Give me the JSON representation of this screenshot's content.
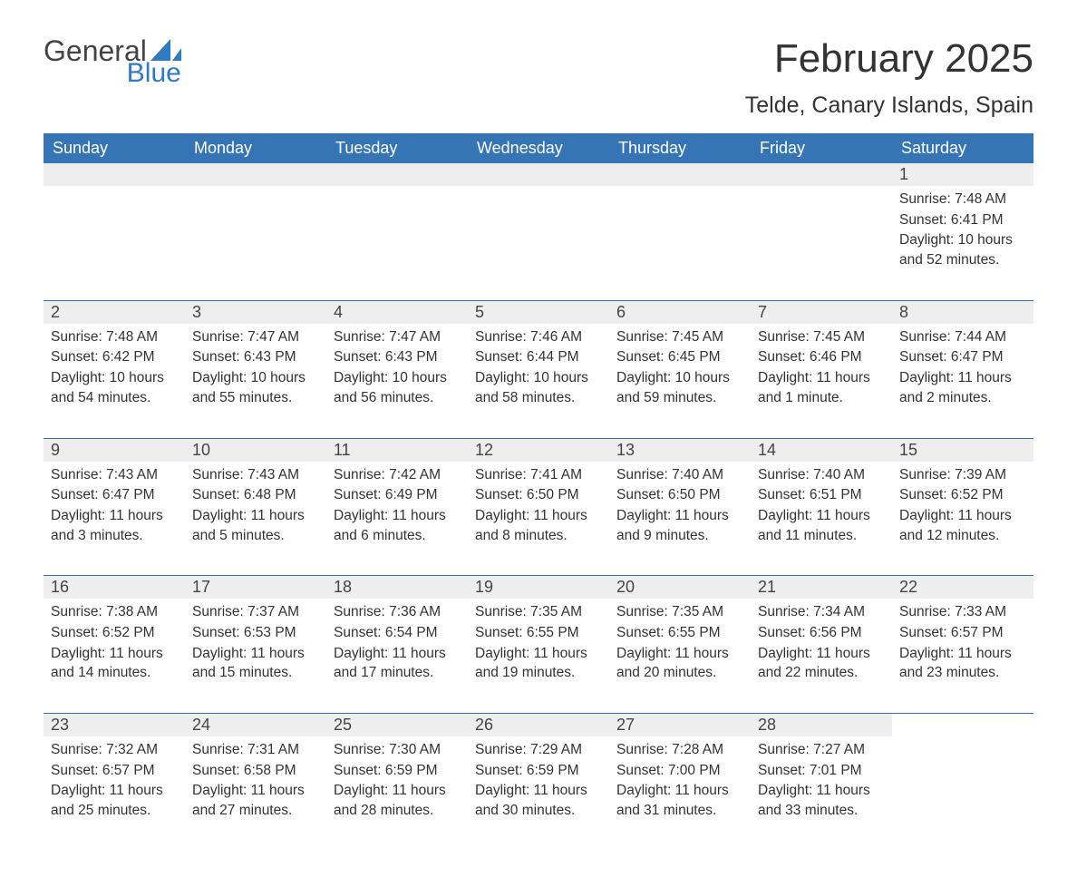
{
  "brand": {
    "part1": "General",
    "part2": "Blue",
    "sail_color": "#2f7ac0"
  },
  "title": "February 2025",
  "location": "Telde, Canary Islands, Spain",
  "columns": [
    "Sunday",
    "Monday",
    "Tuesday",
    "Wednesday",
    "Thursday",
    "Friday",
    "Saturday"
  ],
  "colors": {
    "header_bg": "#3574b5",
    "header_text": "#ffffff",
    "daynum_bg": "#eeeeee",
    "text": "#333333",
    "rule": "#3574b5",
    "background": "#ffffff"
  },
  "typography": {
    "title_fontsize": 44,
    "location_fontsize": 25,
    "header_fontsize": 18,
    "daynum_fontsize": 18,
    "body_fontsize": 15.5
  },
  "labels": {
    "sunrise": "Sunrise:",
    "sunset": "Sunset:",
    "daylight": "Daylight:"
  },
  "weeks": [
    [
      null,
      null,
      null,
      null,
      null,
      null,
      {
        "n": "1",
        "sunrise": "7:48 AM",
        "sunset": "6:41 PM",
        "daylight": "10 hours and 52 minutes."
      }
    ],
    [
      {
        "n": "2",
        "sunrise": "7:48 AM",
        "sunset": "6:42 PM",
        "daylight": "10 hours and 54 minutes."
      },
      {
        "n": "3",
        "sunrise": "7:47 AM",
        "sunset": "6:43 PM",
        "daylight": "10 hours and 55 minutes."
      },
      {
        "n": "4",
        "sunrise": "7:47 AM",
        "sunset": "6:43 PM",
        "daylight": "10 hours and 56 minutes."
      },
      {
        "n": "5",
        "sunrise": "7:46 AM",
        "sunset": "6:44 PM",
        "daylight": "10 hours and 58 minutes."
      },
      {
        "n": "6",
        "sunrise": "7:45 AM",
        "sunset": "6:45 PM",
        "daylight": "10 hours and 59 minutes."
      },
      {
        "n": "7",
        "sunrise": "7:45 AM",
        "sunset": "6:46 PM",
        "daylight": "11 hours and 1 minute."
      },
      {
        "n": "8",
        "sunrise": "7:44 AM",
        "sunset": "6:47 PM",
        "daylight": "11 hours and 2 minutes."
      }
    ],
    [
      {
        "n": "9",
        "sunrise": "7:43 AM",
        "sunset": "6:47 PM",
        "daylight": "11 hours and 3 minutes."
      },
      {
        "n": "10",
        "sunrise": "7:43 AM",
        "sunset": "6:48 PM",
        "daylight": "11 hours and 5 minutes."
      },
      {
        "n": "11",
        "sunrise": "7:42 AM",
        "sunset": "6:49 PM",
        "daylight": "11 hours and 6 minutes."
      },
      {
        "n": "12",
        "sunrise": "7:41 AM",
        "sunset": "6:50 PM",
        "daylight": "11 hours and 8 minutes."
      },
      {
        "n": "13",
        "sunrise": "7:40 AM",
        "sunset": "6:50 PM",
        "daylight": "11 hours and 9 minutes."
      },
      {
        "n": "14",
        "sunrise": "7:40 AM",
        "sunset": "6:51 PM",
        "daylight": "11 hours and 11 minutes."
      },
      {
        "n": "15",
        "sunrise": "7:39 AM",
        "sunset": "6:52 PM",
        "daylight": "11 hours and 12 minutes."
      }
    ],
    [
      {
        "n": "16",
        "sunrise": "7:38 AM",
        "sunset": "6:52 PM",
        "daylight": "11 hours and 14 minutes."
      },
      {
        "n": "17",
        "sunrise": "7:37 AM",
        "sunset": "6:53 PM",
        "daylight": "11 hours and 15 minutes."
      },
      {
        "n": "18",
        "sunrise": "7:36 AM",
        "sunset": "6:54 PM",
        "daylight": "11 hours and 17 minutes."
      },
      {
        "n": "19",
        "sunrise": "7:35 AM",
        "sunset": "6:55 PM",
        "daylight": "11 hours and 19 minutes."
      },
      {
        "n": "20",
        "sunrise": "7:35 AM",
        "sunset": "6:55 PM",
        "daylight": "11 hours and 20 minutes."
      },
      {
        "n": "21",
        "sunrise": "7:34 AM",
        "sunset": "6:56 PM",
        "daylight": "11 hours and 22 minutes."
      },
      {
        "n": "22",
        "sunrise": "7:33 AM",
        "sunset": "6:57 PM",
        "daylight": "11 hours and 23 minutes."
      }
    ],
    [
      {
        "n": "23",
        "sunrise": "7:32 AM",
        "sunset": "6:57 PM",
        "daylight": "11 hours and 25 minutes."
      },
      {
        "n": "24",
        "sunrise": "7:31 AM",
        "sunset": "6:58 PM",
        "daylight": "11 hours and 27 minutes."
      },
      {
        "n": "25",
        "sunrise": "7:30 AM",
        "sunset": "6:59 PM",
        "daylight": "11 hours and 28 minutes."
      },
      {
        "n": "26",
        "sunrise": "7:29 AM",
        "sunset": "6:59 PM",
        "daylight": "11 hours and 30 minutes."
      },
      {
        "n": "27",
        "sunrise": "7:28 AM",
        "sunset": "7:00 PM",
        "daylight": "11 hours and 31 minutes."
      },
      {
        "n": "28",
        "sunrise": "7:27 AM",
        "sunset": "7:01 PM",
        "daylight": "11 hours and 33 minutes."
      },
      null
    ]
  ]
}
